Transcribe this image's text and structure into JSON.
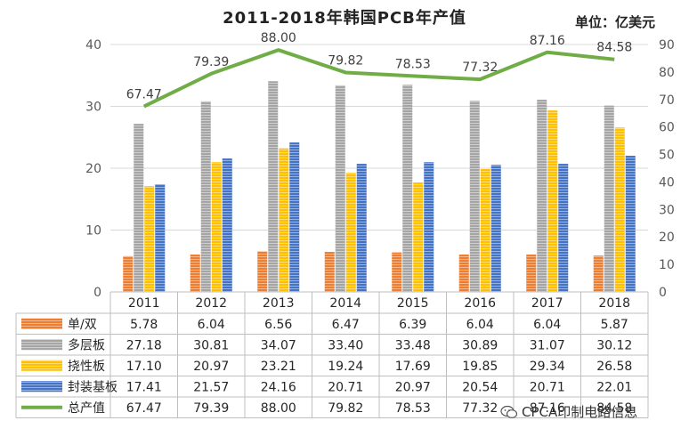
{
  "chart_data": {
    "type": "bar",
    "title": "2011-2018年韩国PCB年产值",
    "unit_label": "单位：亿美元",
    "categories": [
      "2011",
      "2012",
      "2013",
      "2014",
      "2015",
      "2016",
      "2017",
      "2018"
    ],
    "series": [
      {
        "name": "单/双",
        "values": [
          5.78,
          6.04,
          6.56,
          6.47,
          6.39,
          6.04,
          6.04,
          5.87
        ],
        "axis": "left",
        "color": "#ED7D31"
      },
      {
        "name": "多层板",
        "values": [
          27.18,
          30.81,
          34.07,
          33.4,
          33.48,
          30.89,
          31.07,
          30.12
        ],
        "axis": "left",
        "color": "#A5A5A5"
      },
      {
        "name": "挠性板",
        "values": [
          17.1,
          20.97,
          23.21,
          19.24,
          17.69,
          19.85,
          29.34,
          26.58
        ],
        "axis": "left",
        "color": "#FFC000"
      },
      {
        "name": "封装基板",
        "values": [
          17.41,
          21.57,
          24.16,
          20.71,
          20.97,
          20.54,
          20.71,
          22.01
        ],
        "axis": "left",
        "color": "#4472C4"
      },
      {
        "name": "总产值",
        "type": "line",
        "values": [
          67.47,
          79.39,
          88.0,
          79.82,
          78.53,
          77.32,
          87.16,
          84.58
        ],
        "axis": "right",
        "color": "#70AD47"
      }
    ],
    "line_labels": [
      "67.47",
      "79.39",
      "88.00",
      "79.82",
      "78.53",
      "77.32",
      "87.16",
      "84.58"
    ],
    "table_values": [
      [
        "5.78",
        "6.04",
        "6.56",
        "6.47",
        "6.39",
        "6.04",
        "6.04",
        "5.87"
      ],
      [
        "27.18",
        "30.81",
        "34.07",
        "33.40",
        "33.48",
        "30.89",
        "31.07",
        "30.12"
      ],
      [
        "17.10",
        "20.97",
        "23.21",
        "19.24",
        "17.69",
        "19.85",
        "29.34",
        "26.58"
      ],
      [
        "17.41",
        "21.57",
        "24.16",
        "20.71",
        "20.97",
        "20.54",
        "20.71",
        "22.01"
      ],
      [
        "67.47",
        "79.39",
        "88.00",
        "79.82",
        "78.53",
        "77.32",
        "87.16",
        "84.58"
      ]
    ],
    "y_left": {
      "min": 0,
      "max": 40,
      "ticks": [
        "0",
        "10",
        "20",
        "30",
        "40"
      ]
    },
    "y_right": {
      "min": 0,
      "max": 90,
      "ticks": [
        "0",
        "10",
        "20",
        "30",
        "40",
        "50",
        "60",
        "70",
        "80",
        "90"
      ]
    },
    "grid": true,
    "legend": "data-table"
  },
  "watermark": {
    "text": "CPCA印制电路信息",
    "icon": "wechat-icon"
  }
}
